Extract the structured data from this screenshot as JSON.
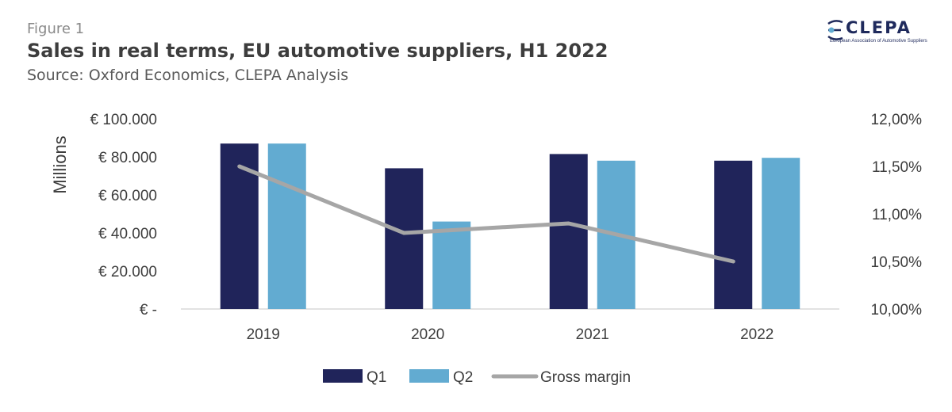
{
  "header": {
    "figure_label": "Figure 1",
    "title": "Sales in real terms, EU automotive suppliers, H1 2022",
    "subtitle": "Source: Oxford Economics, CLEPA Analysis"
  },
  "logo": {
    "name": "CLEPA",
    "tagline": "European Association of Automotive Suppliers",
    "color": "#1f2a5c"
  },
  "chart_data": {
    "type": "bar",
    "categories": [
      "2019",
      "2020",
      "2021",
      "2022"
    ],
    "series": [
      {
        "name": "Q1",
        "type": "bar",
        "axis": "left",
        "color": "#20245a",
        "values": [
          87000,
          74000,
          81500,
          78000
        ]
      },
      {
        "name": "Q2",
        "type": "bar",
        "axis": "left",
        "color": "#62abd1",
        "values": [
          87000,
          46000,
          78000,
          79500
        ]
      },
      {
        "name": "Gross margin",
        "type": "line",
        "axis": "right",
        "color": "#a6a6a6",
        "values": [
          11.5,
          10.8,
          10.9,
          10.5
        ]
      }
    ],
    "ylabel": "Millions",
    "ylim": [
      0,
      100000
    ],
    "y2lim": [
      10.0,
      12.0
    ],
    "y_ticks": [
      0,
      20000,
      40000,
      60000,
      80000,
      100000
    ],
    "y_tick_labels": [
      "€ -",
      "€ 20.000",
      "€ 40.000",
      "€ 60.000",
      "€ 80.000",
      "€ 100.000"
    ],
    "y2_ticks": [
      10.0,
      10.5,
      11.0,
      11.5,
      12.0
    ],
    "y2_tick_labels": [
      "10,00%",
      "10,50%",
      "11,00%",
      "11,50%",
      "12,00%"
    ],
    "legend_position": "bottom",
    "grid": false
  }
}
